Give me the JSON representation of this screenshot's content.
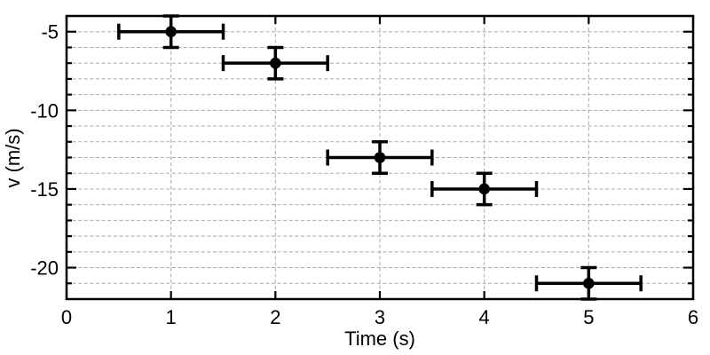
{
  "chart_data": {
    "type": "scatter",
    "title": "",
    "xlabel": "Time (s)",
    "ylabel": "v (m/s)",
    "xlim": [
      0,
      6
    ],
    "ylim": [
      -22,
      -4
    ],
    "x_major_ticks": [
      0,
      1,
      2,
      3,
      4,
      5,
      6
    ],
    "x_tick_labels": [
      "0",
      "1",
      "2",
      "3",
      "4",
      "5",
      "6"
    ],
    "y_major_ticks": [
      -5,
      -10,
      -15,
      -20
    ],
    "y_tick_labels": [
      "-5",
      "-10",
      "-15",
      "-20"
    ],
    "y_minor_tick_step": 1,
    "grid": {
      "horizontal_step": 1,
      "vertical_at_x_majors": [
        1,
        2,
        3,
        4,
        5
      ],
      "line_style": "dashed",
      "shown": true
    },
    "legend": "none",
    "series": [
      {
        "name": "velocity-vs-time",
        "marker": "filled-circle",
        "points": [
          {
            "x": 1,
            "y": -5,
            "xerr": 0.5,
            "yerr": 1
          },
          {
            "x": 2,
            "y": -7,
            "xerr": 0.5,
            "yerr": 1
          },
          {
            "x": 3,
            "y": -13,
            "xerr": 0.5,
            "yerr": 1
          },
          {
            "x": 4,
            "y": -15,
            "xerr": 0.5,
            "yerr": 1
          },
          {
            "x": 5,
            "y": -21,
            "xerr": 0.5,
            "yerr": 1
          }
        ]
      }
    ],
    "colors": {
      "background": "#ffffff",
      "axis": "#000000",
      "grid": "#a9a9a9",
      "marker": "#000000",
      "tick_label": "#000000"
    }
  }
}
